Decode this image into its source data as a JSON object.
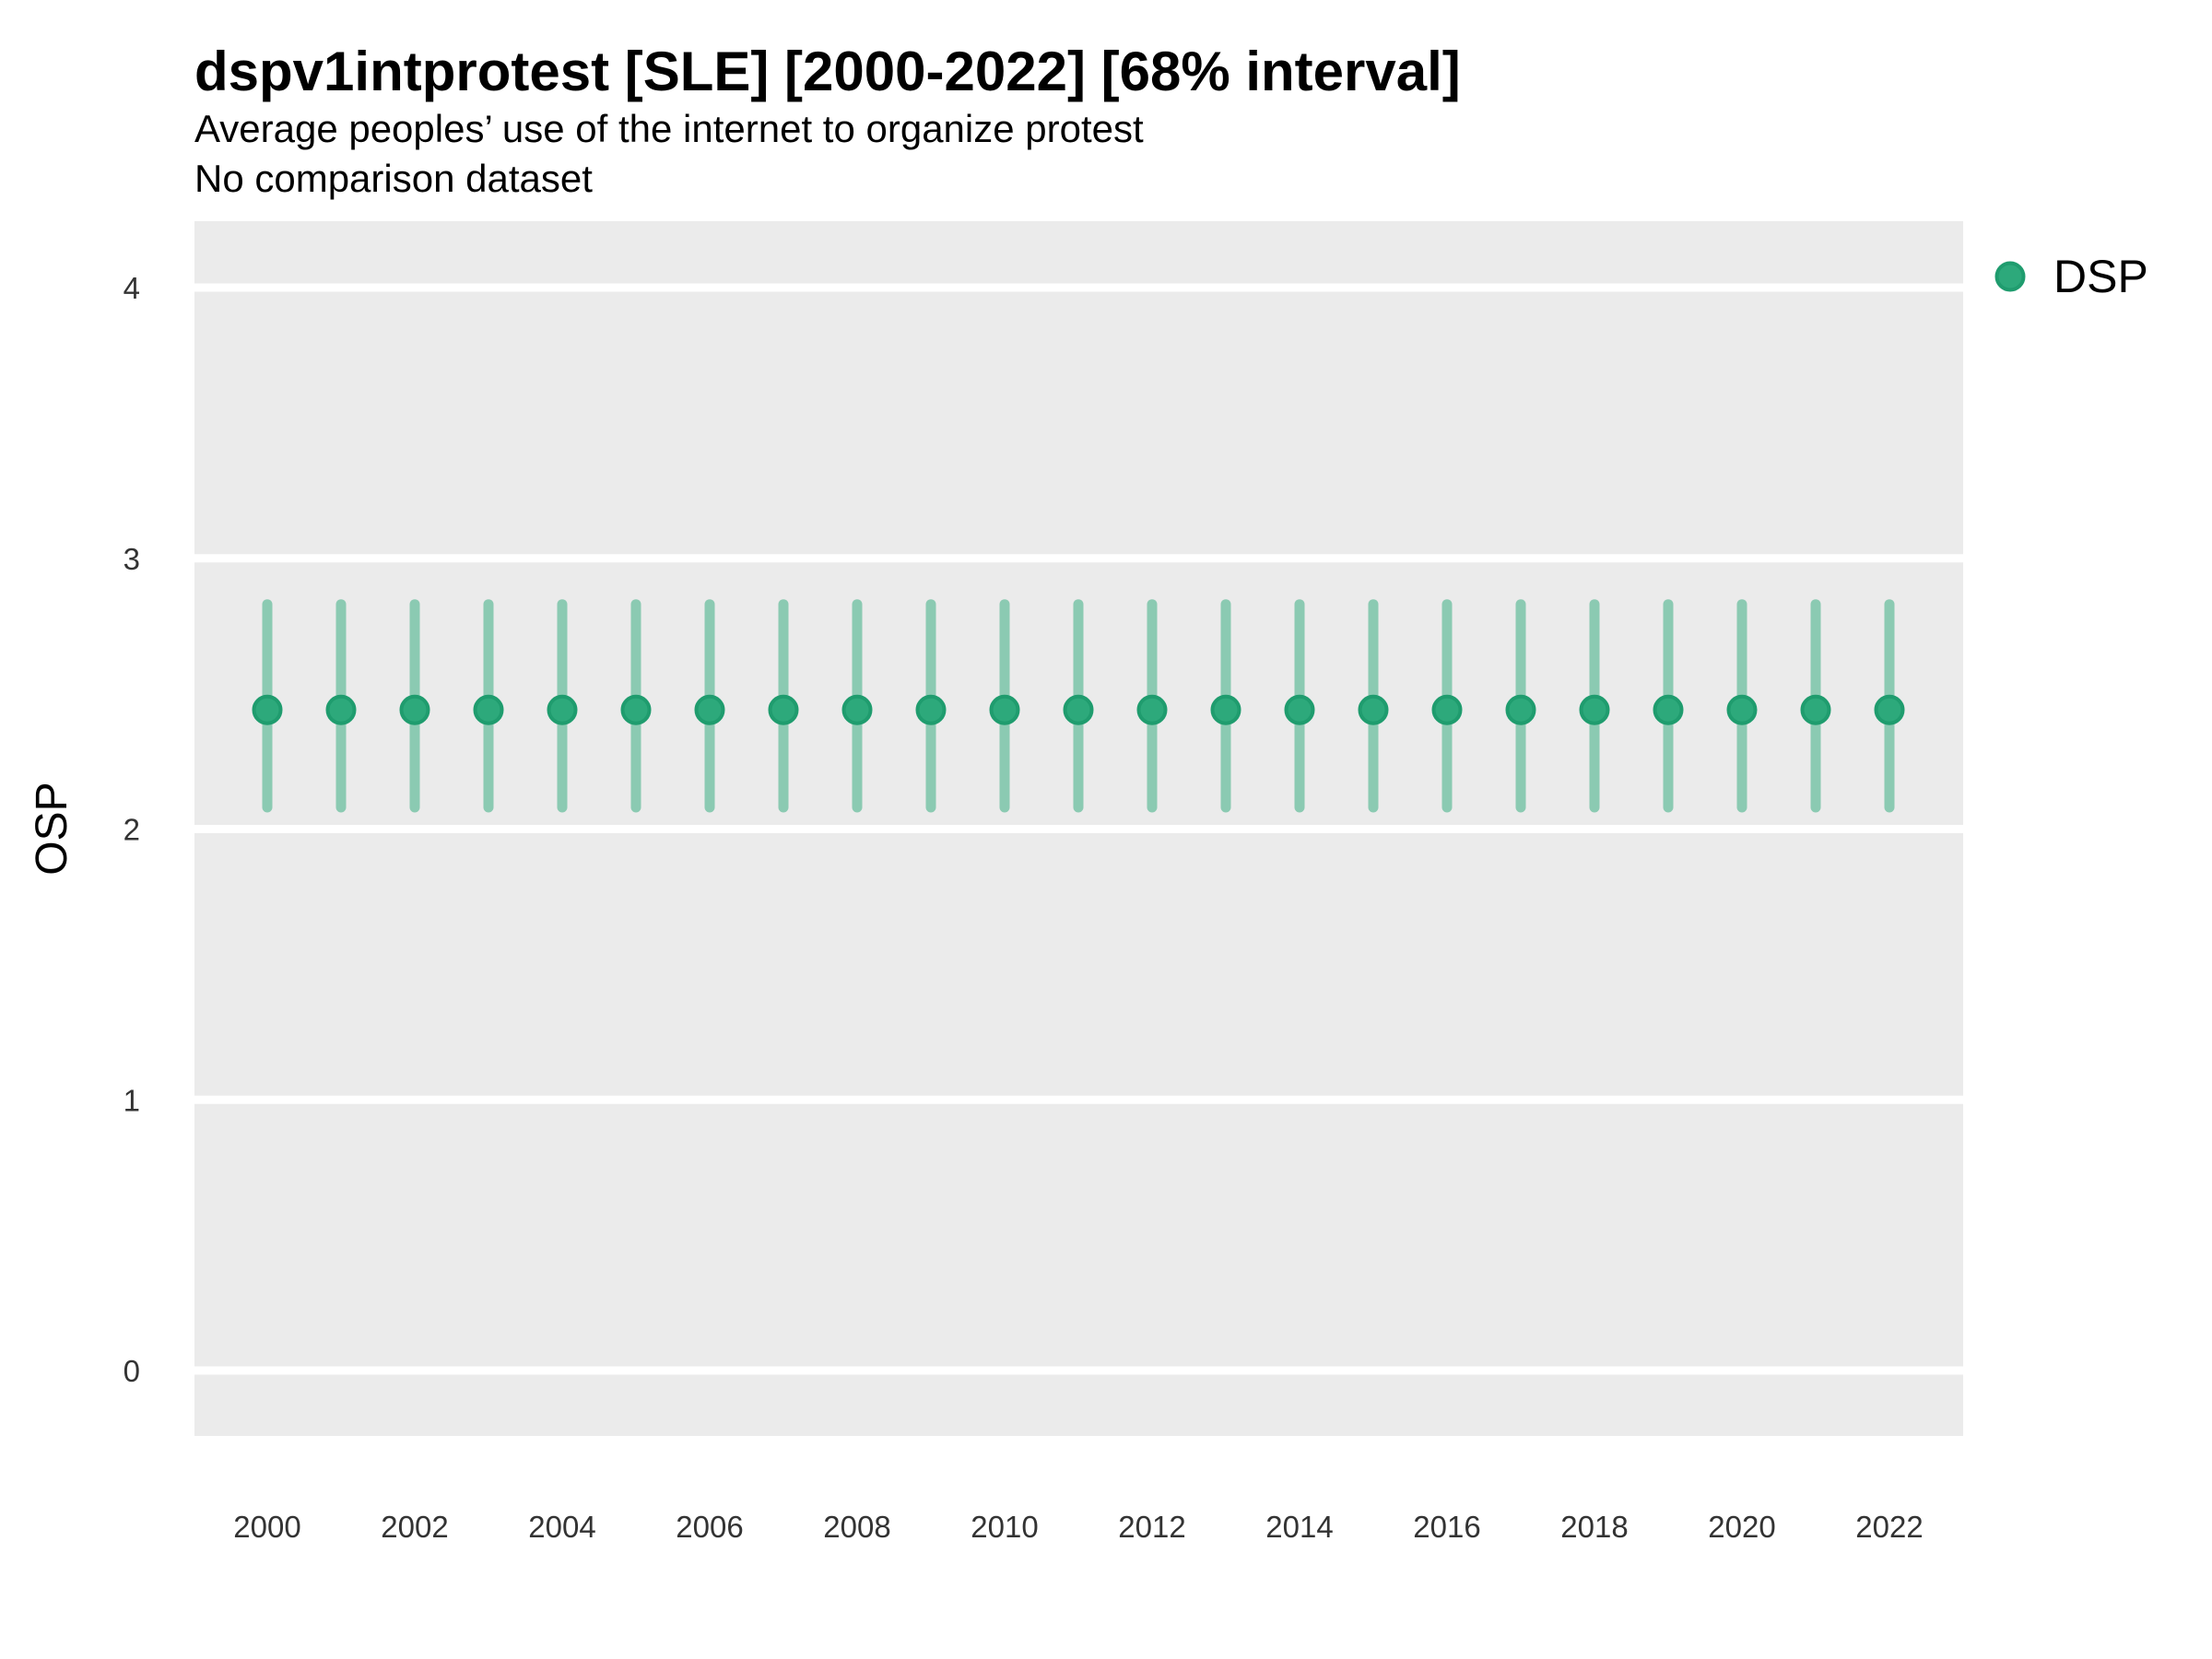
{
  "header": {
    "title": "dspv1intprotest [SLE] [2000-2022] [68% interval]",
    "subtitle": "Average peoples’ use of the internet to organize protest",
    "note": "No comparison dataset"
  },
  "legend": {
    "position": "right",
    "items": [
      {
        "label": "DSP",
        "marker": "filled-circle"
      }
    ]
  },
  "axes": {
    "y": {
      "label": "OSP",
      "ticks": [
        "0",
        "1",
        "2",
        "3",
        "4"
      ]
    },
    "x": {
      "label": "",
      "tick_labels": [
        "2000",
        "2002",
        "2004",
        "2006",
        "2008",
        "2010",
        "2012",
        "2014",
        "2016",
        "2018",
        "2020",
        "2022"
      ]
    }
  },
  "colors": {
    "panel_background": "#EBEBEB",
    "gridline": "#FFFFFF",
    "point_fill": "#2DA97B",
    "point_stroke": "#1F9C6E",
    "interval_line": "#8BCAB2",
    "title_text": "#000000",
    "tick_text": "#333333"
  },
  "chart_data": {
    "type": "scatter",
    "title": "dspv1intprotest [SLE] [2000-2022] [68% interval]",
    "subtitle": "Average peoples’ use of the internet to organize protest",
    "note": "No comparison dataset",
    "interval": "68%",
    "xlabel": "",
    "ylabel": "OSP",
    "x": [
      2000,
      2001,
      2002,
      2003,
      2004,
      2005,
      2006,
      2007,
      2008,
      2009,
      2010,
      2011,
      2012,
      2013,
      2014,
      2015,
      2016,
      2017,
      2018,
      2019,
      2020,
      2021,
      2022
    ],
    "series": [
      {
        "name": "DSP",
        "values": [
          2.44,
          2.44,
          2.44,
          2.44,
          2.44,
          2.44,
          2.44,
          2.44,
          2.44,
          2.44,
          2.44,
          2.44,
          2.44,
          2.44,
          2.44,
          2.44,
          2.44,
          2.44,
          2.44,
          2.44,
          2.44,
          2.44,
          2.44
        ],
        "lower": [
          2.08,
          2.08,
          2.08,
          2.08,
          2.08,
          2.08,
          2.08,
          2.08,
          2.08,
          2.08,
          2.08,
          2.08,
          2.08,
          2.08,
          2.08,
          2.08,
          2.08,
          2.08,
          2.08,
          2.08,
          2.08,
          2.08,
          2.08
        ],
        "upper": [
          2.83,
          2.83,
          2.83,
          2.83,
          2.83,
          2.83,
          2.83,
          2.83,
          2.83,
          2.83,
          2.83,
          2.83,
          2.83,
          2.83,
          2.83,
          2.83,
          2.83,
          2.83,
          2.83,
          2.83,
          2.83,
          2.83,
          2.83
        ]
      }
    ],
    "ylim": [
      -0.24,
      4.25
    ],
    "yticks": [
      0,
      1,
      2,
      3,
      4
    ],
    "xticks": [
      2000,
      2002,
      2004,
      2006,
      2008,
      2010,
      2012,
      2014,
      2016,
      2018,
      2020,
      2022
    ],
    "grid": "horizontal-major-only",
    "legend_position": "right"
  }
}
